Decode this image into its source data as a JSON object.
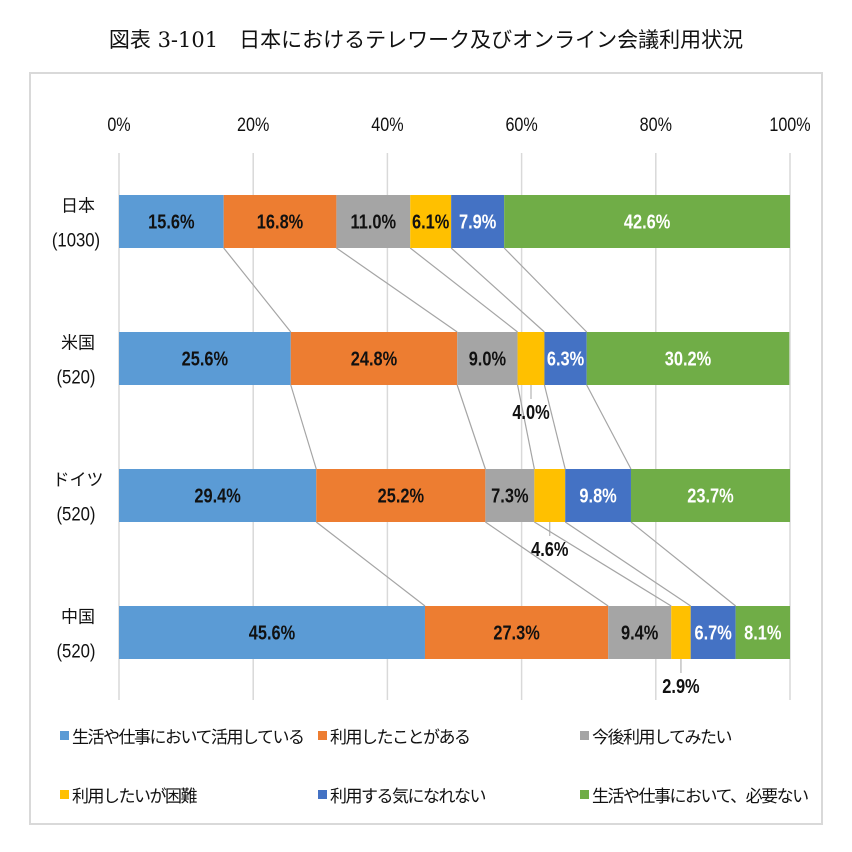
{
  "chart_data": {
    "type": "bar",
    "orientation": "horizontal",
    "stacked": "100%",
    "title": "図表 3-101　日本におけるテレワーク及びオンライン会議利用状況",
    "xlabel": "",
    "ylabel": "",
    "xlim": [
      0,
      100
    ],
    "x_ticks": [
      "0%",
      "20%",
      "40%",
      "60%",
      "80%",
      "100%"
    ],
    "grid": true,
    "legend_position": "bottom",
    "categories": [
      {
        "name": "日本",
        "n": "(1030)"
      },
      {
        "name": "米国",
        "n": "(520)"
      },
      {
        "name": "ドイツ",
        "n": "(520)"
      },
      {
        "name": "中国",
        "n": "(520)"
      }
    ],
    "series": [
      {
        "name": "生活や仕事において活用している",
        "color": "#5b9bd5",
        "label_color": "#111111",
        "values": [
          15.6,
          25.6,
          29.4,
          45.6
        ]
      },
      {
        "name": "利用したことがある",
        "color": "#ed7d31",
        "label_color": "#111111",
        "values": [
          16.8,
          24.8,
          25.2,
          27.3
        ]
      },
      {
        "name": "今後利用してみたい",
        "color": "#a5a5a5",
        "label_color": "#111111",
        "values": [
          11.0,
          9.0,
          7.3,
          9.4
        ]
      },
      {
        "name": "利用したいが困難",
        "color": "#ffc000",
        "label_color": "#111111",
        "values": [
          6.1,
          4.0,
          4.6,
          2.9
        ]
      },
      {
        "name": "利用する気になれない",
        "color": "#4472c4",
        "label_color": "#ffffff",
        "values": [
          7.9,
          6.3,
          9.8,
          6.7
        ]
      },
      {
        "name": "生活や仕事において、必要ない",
        "color": "#70ad47",
        "label_color": "#ffffff",
        "values": [
          42.6,
          30.2,
          23.7,
          8.1
        ]
      }
    ],
    "external_labels": [
      {
        "category": 1,
        "series": 3
      },
      {
        "category": 2,
        "series": 3
      },
      {
        "category": 3,
        "series": 3
      }
    ],
    "series_lines": true
  }
}
